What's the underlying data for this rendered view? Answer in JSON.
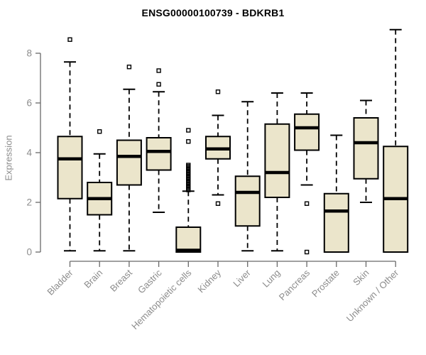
{
  "chart_data": {
    "type": "boxplot",
    "title": "ENSG00000100739 - BDKRB1",
    "ylabel": "Expression",
    "xlabel": "",
    "ylim": [
      0,
      9
    ],
    "yticks": [
      0,
      2,
      4,
      6,
      8
    ],
    "grid": false,
    "legend": "none",
    "categories": [
      "Bladder",
      "Brain",
      "Breast",
      "Gastric",
      "Hematopoietic cells",
      "Kidney",
      "Liver",
      "Lung",
      "Pancreas",
      "Prostate",
      "Skin",
      "Unknown / Other"
    ],
    "boxes": [
      {
        "category": "Bladder",
        "low": 0.05,
        "q1": 2.15,
        "median": 3.75,
        "q3": 4.65,
        "high": 7.65,
        "outliers": [
          8.55
        ]
      },
      {
        "category": "Brain",
        "low": 0.05,
        "q1": 1.5,
        "median": 2.15,
        "q3": 2.8,
        "high": 3.95,
        "outliers": [
          4.85
        ]
      },
      {
        "category": "Breast",
        "low": 0.05,
        "q1": 2.7,
        "median": 3.85,
        "q3": 4.5,
        "high": 6.55,
        "outliers": [
          7.45
        ]
      },
      {
        "category": "Gastric",
        "low": 1.6,
        "q1": 3.3,
        "median": 4.05,
        "q3": 4.6,
        "high": 6.45,
        "outliers": [
          6.75,
          7.3
        ]
      },
      {
        "category": "Hematopoietic cells",
        "low": 0.0,
        "q1": 0.0,
        "median": 0.07,
        "q3": 1.0,
        "high": 2.45,
        "outliers": [
          2.5,
          2.55,
          2.6,
          2.65,
          2.7,
          2.75,
          2.8,
          2.85,
          2.9,
          2.95,
          3.0,
          3.05,
          3.1,
          3.15,
          3.2,
          3.25,
          3.3,
          3.35,
          3.4,
          3.45,
          3.5,
          4.45,
          4.9
        ]
      },
      {
        "category": "Kidney",
        "low": 2.3,
        "q1": 3.75,
        "median": 4.15,
        "q3": 4.65,
        "high": 5.5,
        "outliers": [
          1.95,
          6.45
        ]
      },
      {
        "category": "Liver",
        "low": 0.05,
        "q1": 1.05,
        "median": 2.4,
        "q3": 3.05,
        "high": 6.05,
        "outliers": []
      },
      {
        "category": "Lung",
        "low": 0.05,
        "q1": 2.2,
        "median": 3.2,
        "q3": 5.15,
        "high": 6.4,
        "outliers": []
      },
      {
        "category": "Pancreas",
        "low": 2.7,
        "q1": 4.1,
        "median": 5.0,
        "q3": 5.55,
        "high": 6.4,
        "outliers": [
          0.0,
          1.95
        ]
      },
      {
        "category": "Prostate",
        "low": 0.0,
        "q1": 0.0,
        "median": 1.65,
        "q3": 2.35,
        "high": 4.7,
        "outliers": []
      },
      {
        "category": "Skin",
        "low": 2.0,
        "q1": 2.95,
        "median": 4.4,
        "q3": 5.4,
        "high": 6.1,
        "outliers": []
      },
      {
        "category": "Unknown / Other",
        "low": 0.0,
        "q1": 0.0,
        "median": 2.15,
        "q3": 4.25,
        "high": 8.95,
        "outliers": []
      }
    ],
    "colors": {
      "box_fill": "#ebe5cb",
      "box_stroke": "#000000",
      "median": "#000000",
      "whisker": "#000000",
      "axis_line": "#696969",
      "tick_label": "#8c8c8c",
      "title": "#000000",
      "background": "#ffffff"
    }
  }
}
